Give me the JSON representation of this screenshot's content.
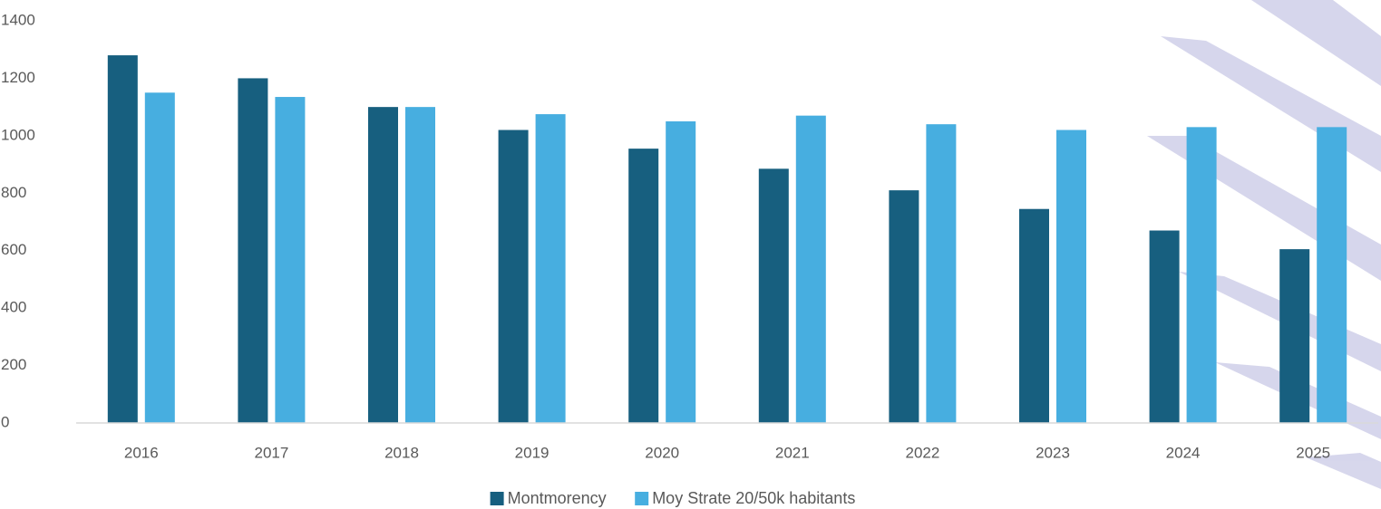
{
  "chart_data": {
    "type": "bar",
    "categories": [
      "2016",
      "2017",
      "2018",
      "2019",
      "2020",
      "2021",
      "2022",
      "2023",
      "2024",
      "2025"
    ],
    "series": [
      {
        "name": "Montmorency",
        "color": "#175f7f",
        "values": [
          1280,
          1200,
          1100,
          1020,
          955,
          885,
          810,
          745,
          670,
          605
        ]
      },
      {
        "name": "Moy Strate 20/50k habitants",
        "color": "#47aee0",
        "values": [
          1150,
          1135,
          1100,
          1075,
          1050,
          1070,
          1040,
          1020,
          1030,
          1030
        ]
      }
    ],
    "ylim": [
      0,
      1400
    ],
    "yticks": [
      0,
      200,
      400,
      600,
      800,
      1000,
      1200,
      1400
    ],
    "grid": false,
    "legend": "bottom"
  }
}
